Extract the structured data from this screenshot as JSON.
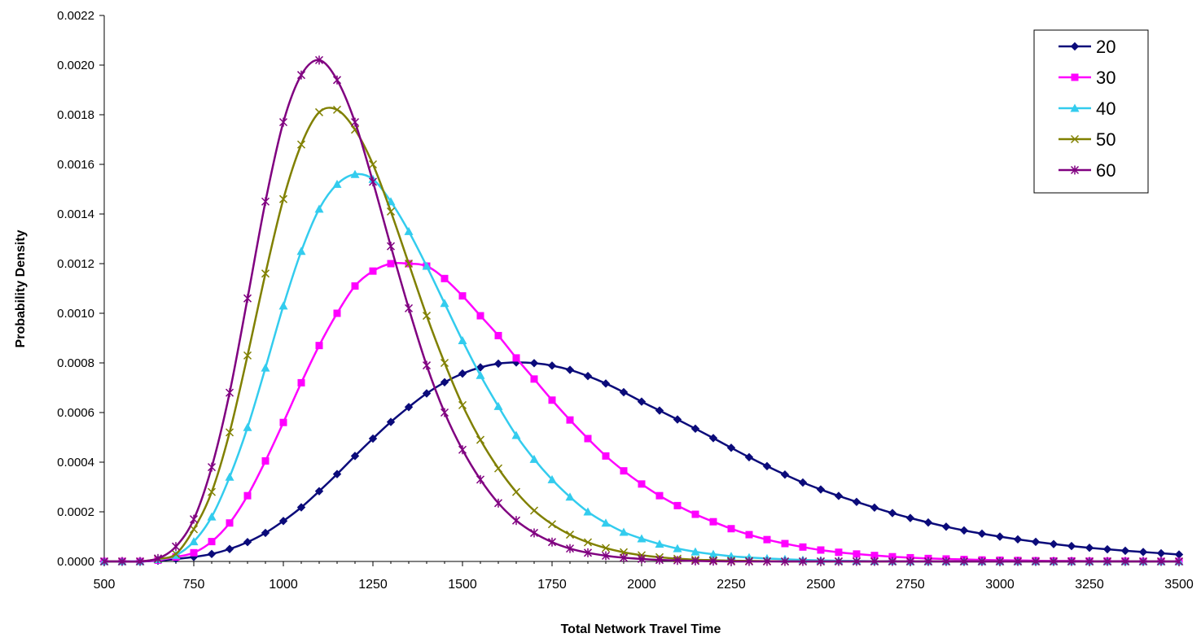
{
  "chart_data": {
    "type": "line",
    "title": "",
    "xlabel": "Total Network Travel Time",
    "ylabel": "Probability Density",
    "xlim": [
      500,
      3500
    ],
    "ylim": [
      0,
      0.0022
    ],
    "x_ticks": [
      "500",
      "750",
      "1000",
      "1250",
      "1500",
      "1750",
      "2000",
      "2250",
      "2500",
      "2750",
      "3000",
      "3250",
      "3500"
    ],
    "y_ticks": [
      "0.0000",
      "0.0002",
      "0.0004",
      "0.0006",
      "0.0008",
      "0.0010",
      "0.0012",
      "0.0014",
      "0.0016",
      "0.0018",
      "0.0020",
      "0.0022"
    ],
    "grid": false,
    "legend_position": "top-right",
    "x": [
      500,
      550,
      600,
      650,
      700,
      750,
      800,
      850,
      900,
      950,
      1000,
      1050,
      1100,
      1150,
      1200,
      1250,
      1300,
      1350,
      1400,
      1450,
      1500,
      1550,
      1600,
      1650,
      1700,
      1750,
      1800,
      1850,
      1900,
      1950,
      2000,
      2050,
      2100,
      2150,
      2200,
      2250,
      2300,
      2350,
      2400,
      2450,
      2500,
      2550,
      2600,
      2650,
      2700,
      2750,
      2800,
      2850,
      2900,
      2950,
      3000,
      3050,
      3100,
      3150,
      3200,
      3250,
      3300,
      3350,
      3400,
      3450,
      3500
    ],
    "series": [
      {
        "name": "20",
        "color": "#0b0b7a",
        "marker": "diamond",
        "values": [
          0,
          0,
          0,
          3e-06,
          1e-05,
          1.8e-05,
          3e-05,
          5e-05,
          7.8e-05,
          0.000115,
          0.000163,
          0.000218,
          0.000283,
          0.000352,
          0.000425,
          0.000495,
          0.000562,
          0.000622,
          0.000677,
          0.000722,
          0.000757,
          0.000782,
          0.000797,
          0.000802,
          0.000799,
          0.000789,
          0.000772,
          0.000747,
          0.000717,
          0.000682,
          0.000644,
          0.000608,
          0.000572,
          0.000535,
          0.000497,
          0.000458,
          0.00042,
          0.000384,
          0.00035,
          0.000318,
          0.00029,
          0.000264,
          0.00024,
          0.000217,
          0.000195,
          0.000175,
          0.000157,
          0.00014,
          0.000125,
          0.000112,
          0.0001,
          8.9e-05,
          7.9e-05,
          7e-05,
          6.2e-05,
          5.5e-05,
          4.9e-05,
          4.3e-05,
          3.8e-05,
          3.3e-05,
          2.8e-05
        ]
      },
      {
        "name": "30",
        "color": "#ff00ff",
        "marker": "square",
        "values": [
          0,
          0,
          0,
          5e-06,
          1.8e-05,
          3.5e-05,
          8e-05,
          0.000155,
          0.000265,
          0.000405,
          0.00056,
          0.00072,
          0.00087,
          0.001,
          0.00111,
          0.00117,
          0.0012,
          0.0012,
          0.00119,
          0.00114,
          0.00107,
          0.00099,
          0.00091,
          0.00082,
          0.000735,
          0.00065,
          0.00057,
          0.000495,
          0.000425,
          0.000365,
          0.000312,
          0.000265,
          0.000225,
          0.00019,
          0.00016,
          0.000132,
          0.000108,
          8.8e-05,
          7.2e-05,
          5.8e-05,
          4.6e-05,
          3.7e-05,
          3e-05,
          2.4e-05,
          1.9e-05,
          1.5e-05,
          1.2e-05,
          1e-05,
          8e-06,
          6e-06,
          5e-06,
          4e-06,
          3e-06,
          2e-06,
          2e-06,
          1e-06,
          1e-06,
          1e-06,
          0,
          0,
          0
        ]
      },
      {
        "name": "40",
        "color": "#33ccee",
        "marker": "triangle",
        "values": [
          0,
          0,
          0,
          8e-06,
          2.5e-05,
          8e-05,
          0.00018,
          0.00034,
          0.00054,
          0.00078,
          0.00103,
          0.00125,
          0.00142,
          0.00152,
          0.00156,
          0.00154,
          0.00145,
          0.00133,
          0.00119,
          0.00104,
          0.00089,
          0.00075,
          0.000625,
          0.000508,
          0.000412,
          0.00033,
          0.00026,
          0.0002,
          0.000155,
          0.000118,
          9.2e-05,
          7e-05,
          5.2e-05,
          3.9e-05,
          2.9e-05,
          2.1e-05,
          1.6e-05,
          1.2e-05,
          9e-06,
          6e-06,
          4e-06,
          3e-06,
          2e-06,
          1e-06,
          1e-06,
          0,
          0,
          0,
          0,
          0,
          0,
          0,
          0,
          0,
          0,
          0,
          0,
          0,
          0,
          0,
          0
        ]
      },
      {
        "name": "50",
        "color": "#808000",
        "marker": "x",
        "values": [
          0,
          0,
          0,
          1e-05,
          3e-05,
          0.00013,
          0.00028,
          0.00052,
          0.00083,
          0.00116,
          0.00146,
          0.00168,
          0.00181,
          0.00182,
          0.00174,
          0.0016,
          0.00141,
          0.0012,
          0.00099,
          0.0008,
          0.00063,
          0.00049,
          0.000375,
          0.00028,
          0.000205,
          0.00015,
          0.000108,
          7.7e-05,
          5.4e-05,
          3.7e-05,
          2.5e-05,
          1.7e-05,
          1.1e-05,
          7e-06,
          5e-06,
          3e-06,
          2e-06,
          1e-06,
          0,
          0,
          0,
          0,
          0,
          0,
          0,
          0,
          0,
          0,
          0,
          0,
          0,
          0,
          0,
          0,
          0,
          0,
          0,
          0,
          0,
          0,
          0
        ]
      },
      {
        "name": "60",
        "color": "#800080",
        "marker": "asterisk",
        "values": [
          0,
          0,
          0,
          1.2e-05,
          6e-05,
          0.00017,
          0.00038,
          0.00068,
          0.00106,
          0.00145,
          0.00177,
          0.00196,
          0.00202,
          0.00194,
          0.00177,
          0.00153,
          0.00127,
          0.00102,
          0.00079,
          0.0006,
          0.00045,
          0.00033,
          0.000235,
          0.000165,
          0.000115,
          7.8e-05,
          5.2e-05,
          3.5e-05,
          2.3e-05,
          1.5e-05,
          1e-05,
          6e-06,
          4e-06,
          2e-06,
          1e-06,
          0,
          0,
          0,
          0,
          0,
          0,
          0,
          0,
          0,
          0,
          0,
          0,
          0,
          0,
          0,
          0,
          0,
          0,
          0,
          0,
          0,
          0,
          0,
          0,
          0,
          0
        ]
      }
    ]
  }
}
